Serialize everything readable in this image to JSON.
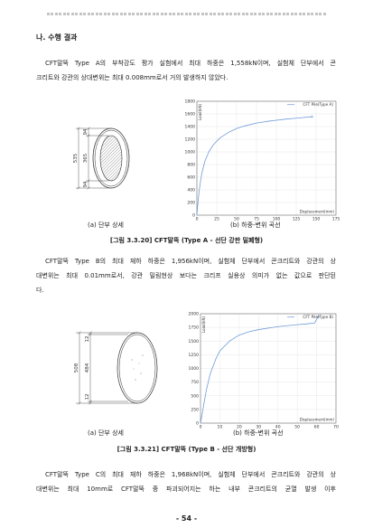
{
  "page": {
    "section_heading": "나. 수행 결과",
    "page_number": "- 54 -"
  },
  "paragraphs": [
    {
      "lines": [
        "CFT말뚝 Type A의 부착강도 평가 실험에서 최대 하중은 1,558kN이며, 실험체 단부에서 콘",
        "크리트와 강관의 상대변위는 최대 0.008mm로서 거의 발생하지 않았다."
      ]
    },
    {
      "lines": [
        "CFT말뚝 Type B의 최대 재하 하중은 1,956kN이며, 실험체 단부에서 콘크리트와 강관의 상",
        "대변위는 최대 0.01mm로서, 강관 밀림현상 보다는 크리프 실용상 의미가 없는 값으로 판단된",
        "다."
      ]
    },
    {
      "lines": [
        "CFT말뚝 Type C의 최대 재하 하중은 1,968kN이며, 실험체 단부에서 콘크리트와 강관의 상",
        "대변위는 최대 10mm로 CFT말뚝 중 파괴되어지는 하는 내부 콘크리트의 균열 발생 이후"
      ]
    }
  ],
  "figures": [
    {
      "diagram_labels": {
        "overall": "535",
        "top": "94",
        "middle": "365",
        "bottom": "94"
      },
      "caption_a": "(a) 단부 상세",
      "caption_b": "(b) 하중-변위 곡선",
      "caption": "[그림 3.3.20] CFT말뚝 (Type A - 선단 강판 밀폐형)"
    },
    {
      "diagram_labels": {
        "overall": "508",
        "top": "12",
        "middle": "484",
        "bottom": "12"
      },
      "caption_a": "(a) 단부 상세",
      "caption_b": "(b) 하중-변위 곡선",
      "caption": "[그림 3.3.21] CFT말뚝 (Type B - 선단 개방형)"
    }
  ],
  "chart_data": [
    {
      "type": "line",
      "xlabel": "Displacement(mm)",
      "ylabel": "Load(kN)",
      "xlim": [
        0,
        175
      ],
      "ylim": [
        0,
        1800
      ],
      "xticks": [
        0,
        25,
        50,
        75,
        100,
        125,
        150,
        175
      ],
      "yticks": [
        0,
        200,
        400,
        600,
        800,
        1000,
        1200,
        1400,
        1600,
        1800
      ],
      "grid": true,
      "grid_color": "#dcdcdc",
      "legend": "top-right",
      "series": [
        {
          "name": "CFT Pile(Type A)",
          "color": "#6f9bd8",
          "x": [
            0,
            1,
            3,
            6,
            10,
            15,
            20,
            25,
            30,
            40,
            50,
            60,
            75,
            90,
            100,
            110,
            125,
            135,
            145
          ],
          "y": [
            0,
            150,
            400,
            650,
            850,
            1000,
            1100,
            1170,
            1230,
            1310,
            1370,
            1410,
            1455,
            1485,
            1500,
            1515,
            1532,
            1545,
            1558
          ]
        }
      ]
    },
    {
      "type": "line",
      "xlabel": "Displacement(mm)",
      "ylabel": "Load(kN)",
      "xlim": [
        0,
        70
      ],
      "ylim": [
        0,
        2000
      ],
      "xticks": [
        0,
        10,
        20,
        30,
        40,
        50,
        60,
        70
      ],
      "yticks": [
        0,
        250,
        500,
        750,
        1000,
        1250,
        1500,
        1750,
        2000
      ],
      "grid": true,
      "grid_color": "#dcdcdc",
      "legend": "top-right",
      "series": [
        {
          "name": "CFT Pile(Type B)",
          "color": "#6f9bd8",
          "x": [
            0,
            1,
            3,
            5,
            8,
            10,
            15,
            20,
            25,
            30,
            40,
            50,
            55,
            59,
            60,
            61
          ],
          "y": [
            0,
            200,
            600,
            900,
            1180,
            1320,
            1500,
            1610,
            1670,
            1710,
            1765,
            1800,
            1815,
            1830,
            1900,
            1956
          ]
        }
      ]
    }
  ]
}
